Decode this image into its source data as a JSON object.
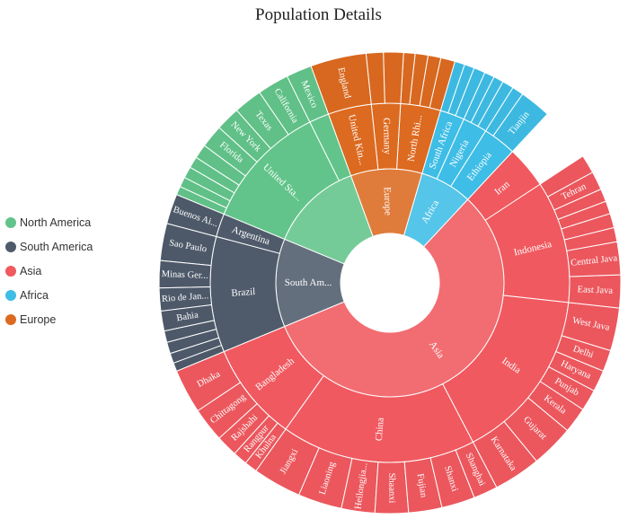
{
  "title": "Population Details",
  "colors": {
    "North America": "#62c48a",
    "South America": "#4f5b6b",
    "Asia": "#f0595f",
    "Africa": "#3ebde6",
    "Europe": "#dc6a20"
  },
  "legend": [
    {
      "label": "North America",
      "color": "#62c48a"
    },
    {
      "label": "South America",
      "color": "#4f5b6b"
    },
    {
      "label": "Asia",
      "color": "#f0595f"
    },
    {
      "label": "Africa",
      "color": "#3ebde6"
    },
    {
      "label": "Europe",
      "color": "#dc6a20"
    }
  ],
  "chart_data": {
    "type": "sunburst",
    "title": "Population Details",
    "legend_position": "left",
    "levels": [
      "continent",
      "country",
      "state/city"
    ],
    "continents": [
      {
        "name": "North America",
        "value": 13.2,
        "children": [
          {
            "name": "Mexico",
            "value": 1.8,
            "children": [
              {
                "name": "Mexico",
                "value": 1.8,
                "label": "Mexico"
              }
            ]
          },
          {
            "name": "United States",
            "value": 11.4,
            "label": "United Sta...",
            "children": [
              {
                "name": "California",
                "value": 2.2,
                "label": "California"
              },
              {
                "name": "Texas",
                "value": 2.0,
                "label": "Texas"
              },
              {
                "name": "New York",
                "value": 1.7,
                "label": "New York"
              },
              {
                "name": "Florida",
                "value": 1.6,
                "label": "Florida"
              },
              {
                "name": "",
                "value": 1.0
              },
              {
                "name": "",
                "value": 0.8
              },
              {
                "name": "",
                "value": 0.8
              },
              {
                "name": "",
                "value": 0.7
              },
              {
                "name": "",
                "value": 0.6
              }
            ]
          }
        ]
      },
      {
        "name": "South America",
        "value": 12.5,
        "label": "South Am...",
        "children": [
          {
            "name": "Argentina",
            "value": 2.1,
            "label": "Argentina",
            "children": [
              {
                "name": "Buenos Aires",
                "value": 2.1,
                "label": "Buenos Ai..."
              }
            ]
          },
          {
            "name": "Brazil",
            "value": 10.4,
            "label": "Brazil",
            "children": [
              {
                "name": "Sao Paulo",
                "value": 2.6,
                "label": "Sao Paulo"
              },
              {
                "name": "Minas Gerais",
                "value": 1.9,
                "label": "Minas Ger..."
              },
              {
                "name": "Rio de Janeiro",
                "value": 1.6,
                "label": "Rio de Jan..."
              },
              {
                "name": "Bahia",
                "value": 1.4,
                "label": "Bahia"
              },
              {
                "name": "",
                "value": 0.8
              },
              {
                "name": "",
                "value": 0.8
              },
              {
                "name": "",
                "value": 0.7
              },
              {
                "name": "",
                "value": 0.6
              }
            ]
          }
        ]
      },
      {
        "name": "Asia",
        "value": 56.8,
        "label": "Asia",
        "children": [
          {
            "name": "Bangladesh",
            "value": 8.9,
            "label": "Bangladesh",
            "children": [
              {
                "name": "Dhaka",
                "value": 3.1,
                "label": "Dhaka"
              },
              {
                "name": "Chittagong",
                "value": 2.4,
                "label": "Chittagong"
              },
              {
                "name": "Rajshahi",
                "value": 1.5,
                "label": "Rajshahi"
              },
              {
                "name": "Rangpur",
                "value": 1.0,
                "label": "Rangpur"
              },
              {
                "name": "Khulna",
                "value": 0.9,
                "label": "Khulna"
              }
            ]
          },
          {
            "name": "China",
            "value": 17.5,
            "label": "China",
            "children": [
              {
                "name": "Jiangxi",
                "value": 3.2,
                "label": "Jiangxi"
              },
              {
                "name": "Liaoning",
                "value": 2.9,
                "label": "Liaoning"
              },
              {
                "name": "Heilongjiang",
                "value": 2.2,
                "label": "Heilongjia..."
              },
              {
                "name": "Shaanxi",
                "value": 2.2,
                "label": "Shaanxi"
              },
              {
                "name": "Fujian",
                "value": 2.2,
                "label": "Fujian"
              },
              {
                "name": "Shanxi",
                "value": 2.2,
                "label": "Shanxi"
              },
              {
                "name": "Shanghai",
                "value": 1.6,
                "label": "Shanghai"
              }
            ]
          },
          {
            "name": "India",
            "value": 15.6,
            "label": "India",
            "children": [
              {
                "name": "Karnataka",
                "value": 3.3,
                "label": "Karnataka"
              },
              {
                "name": "Gujarat",
                "value": 3.0,
                "label": "Gujarat"
              },
              {
                "name": "Kerala",
                "value": 1.8,
                "label": "Kerala"
              },
              {
                "name": "Punjab",
                "value": 1.5,
                "label": "Punjab"
              },
              {
                "name": "Haryana",
                "value": 1.5,
                "label": "Haryana"
              },
              {
                "name": "Delhi",
                "value": 1.5,
                "label": "Delhi"
              },
              {
                "name": "West Java",
                "value": 3.0,
                "label": "West Java"
              }
            ]
          },
          {
            "name": "Indonesia",
            "value": 11.0,
            "label": "Indonesia",
            "children": [
              {
                "name": "East Java",
                "value": 2.3,
                "label": "East Java"
              },
              {
                "name": "Central Java",
                "value": 2.3,
                "label": "Central Java"
              },
              {
                "name": "",
                "value": 1.0
              },
              {
                "name": "",
                "value": 1.0
              },
              {
                "name": "",
                "value": 0.9
              },
              {
                "name": "",
                "value": 0.9
              },
              {
                "name": "Tehran",
                "value": 1.3,
                "label": "Tehran"
              },
              {
                "name": "",
                "value": 1.3
              }
            ]
          },
          {
            "name": "Iran",
            "value": 3.8,
            "label": "Iran",
            "children": []
          }
        ]
      },
      {
        "name": "Africa",
        "value": 7.4,
        "label": "Africa",
        "children": [
          {
            "name": "Ethiopia",
            "value": 3.0,
            "label": "Ethiopia",
            "children": [
              {
                "name": "Tianjin",
                "value": 2.2,
                "label": "Tianjin"
              },
              {
                "name": "",
                "value": 0.8
              }
            ]
          },
          {
            "name": "Nigeria",
            "value": 2.2,
            "label": "Nigeria",
            "children": [
              {
                "name": "",
                "value": 0.8
              },
              {
                "name": "",
                "value": 0.7
              },
              {
                "name": "",
                "value": 0.7
              }
            ]
          },
          {
            "name": "South Africa",
            "value": 2.2,
            "label": "South Africa",
            "children": [
              {
                "name": "",
                "value": 0.8
              },
              {
                "name": "",
                "value": 0.7
              },
              {
                "name": "",
                "value": 0.7
              }
            ]
          }
        ]
      },
      {
        "name": "Europe",
        "value": 10.1,
        "label": "Europe",
        "children": [
          {
            "name": "North Rhine-Westphalia",
            "value": 3.6,
            "label": "North Rhi...",
            "children": [
              {
                "name": "",
                "value": 1.0
              },
              {
                "name": "",
                "value": 0.9
              },
              {
                "name": "",
                "value": 0.9
              },
              {
                "name": "",
                "value": 0.8
              }
            ]
          },
          {
            "name": "Germany",
            "value": 2.6,
            "label": "Germany",
            "children": [
              {
                "name": "",
                "value": 1.4
              },
              {
                "name": "",
                "value": 1.2
              }
            ]
          },
          {
            "name": "United Kingdom",
            "value": 3.9,
            "label": "United Kin...",
            "children": [
              {
                "name": "England",
                "value": 3.9,
                "label": "England"
              }
            ]
          }
        ]
      }
    ]
  }
}
